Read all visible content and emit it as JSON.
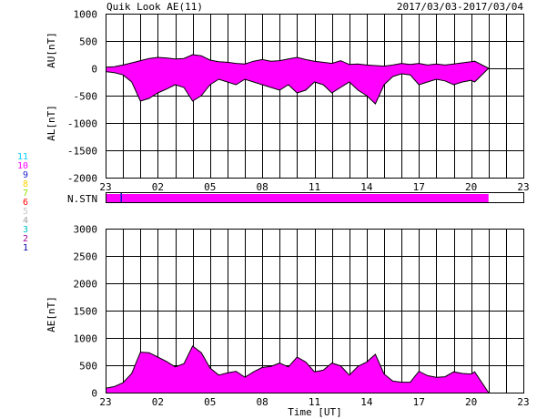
{
  "header": {
    "title": "Quik Look AE(11)",
    "date_range": "2017/03/03-2017/03/04"
  },
  "stations_panel": {
    "label": "N.STN",
    "legend": [
      {
        "label": "11",
        "color": "#00d0ff"
      },
      {
        "label": "10",
        "color": "#ff00ff"
      },
      {
        "label": "9",
        "color": "#1a1acc"
      },
      {
        "label": "8",
        "color": "#ffd000"
      },
      {
        "label": "7",
        "color": "#90e000"
      },
      {
        "label": "6",
        "color": "#ff0000"
      },
      {
        "label": "5",
        "color": "#c8c8c8"
      },
      {
        "label": "4",
        "color": "#a0a0a0"
      },
      {
        "label": "3",
        "color": "#00c0c0"
      },
      {
        "label": "2",
        "color": "#a000a0"
      },
      {
        "label": "1",
        "color": "#0000a0"
      }
    ],
    "bar_color": "#ff00ff",
    "bar_extent_hours": [
      0,
      22
    ],
    "marker_hour": 0.9
  },
  "x_axis": {
    "tick_labels": [
      "23",
      "02",
      "05",
      "08",
      "11",
      "14",
      "17",
      "20",
      "23"
    ],
    "title": "Time [UT]"
  },
  "chart_data": [
    {
      "type": "area",
      "name": "AU/AL",
      "ylabel_top": "AU[nT]",
      "ylabel_bottom": "AL[nT]",
      "ylim": [
        -2000,
        1000
      ],
      "yticks": [
        1000,
        500,
        0,
        -500,
        -1000,
        -1500,
        -2000
      ],
      "xlim_hours": [
        0,
        24
      ],
      "fill_color": "#ff00ff",
      "au": {
        "x": [
          0,
          0.5,
          1,
          1.5,
          2,
          2.5,
          3,
          3.5,
          4,
          4.5,
          5,
          5.5,
          6,
          6.5,
          7,
          7.5,
          8,
          8.5,
          9,
          9.5,
          10,
          10.5,
          11,
          11.5,
          12,
          12.5,
          13,
          13.5,
          14,
          14.5,
          15,
          15.5,
          16,
          16.5,
          17,
          17.5,
          18,
          18.5,
          19,
          19.5,
          20,
          20.5,
          21,
          21.2,
          22
        ],
        "y": [
          20,
          30,
          60,
          100,
          140,
          180,
          200,
          190,
          170,
          180,
          250,
          230,
          150,
          120,
          110,
          90,
          80,
          130,
          160,
          130,
          140,
          170,
          200,
          160,
          130,
          110,
          90,
          140,
          70,
          80,
          60,
          50,
          40,
          60,
          90,
          70,
          90,
          60,
          80,
          60,
          80,
          100,
          120,
          130,
          0
        ]
      },
      "al": {
        "x": [
          0,
          0.5,
          1,
          1.5,
          2,
          2.5,
          3,
          3.5,
          4,
          4.5,
          5,
          5.5,
          6,
          6.5,
          7,
          7.5,
          8,
          8.5,
          9,
          9.5,
          10,
          10.5,
          11,
          11.5,
          12,
          12.5,
          13,
          13.5,
          14,
          14.5,
          15,
          15.5,
          16,
          16.5,
          17,
          17.5,
          18,
          18.5,
          19,
          19.5,
          20,
          20.5,
          21,
          21.2,
          22
        ],
        "y": [
          -60,
          -80,
          -120,
          -250,
          -600,
          -550,
          -450,
          -380,
          -300,
          -350,
          -600,
          -500,
          -300,
          -200,
          -250,
          -300,
          -200,
          -250,
          -300,
          -350,
          -400,
          -300,
          -450,
          -400,
          -250,
          -300,
          -450,
          -350,
          -250,
          -400,
          -500,
          -650,
          -300,
          -150,
          -100,
          -120,
          -300,
          -250,
          -200,
          -230,
          -300,
          -250,
          -220,
          -250,
          0
        ]
      }
    },
    {
      "type": "area",
      "name": "AE",
      "ylabel": "AE[nT]",
      "ylim": [
        0,
        3000
      ],
      "yticks": [
        3000,
        2500,
        2000,
        1500,
        1000,
        500,
        0
      ],
      "xlim_hours": [
        0,
        24
      ],
      "fill_color": "#ff00ff",
      "x": [
        0,
        0.5,
        1,
        1.5,
        2,
        2.5,
        3,
        3.5,
        4,
        4.5,
        5,
        5.5,
        6,
        6.5,
        7,
        7.5,
        8,
        8.5,
        9,
        9.5,
        10,
        10.5,
        11,
        11.5,
        12,
        12.5,
        13,
        13.5,
        14,
        14.5,
        15,
        15.5,
        16,
        16.5,
        17,
        17.5,
        18,
        18.5,
        19,
        19.5,
        20,
        20.5,
        21,
        21.2,
        22
      ],
      "y": [
        80,
        110,
        180,
        350,
        740,
        730,
        650,
        570,
        470,
        530,
        850,
        730,
        450,
        320,
        360,
        390,
        280,
        380,
        460,
        480,
        540,
        470,
        650,
        560,
        380,
        410,
        540,
        490,
        320,
        480,
        560,
        700,
        340,
        210,
        190,
        190,
        390,
        310,
        280,
        290,
        380,
        350,
        340,
        380,
        0
      ]
    }
  ]
}
